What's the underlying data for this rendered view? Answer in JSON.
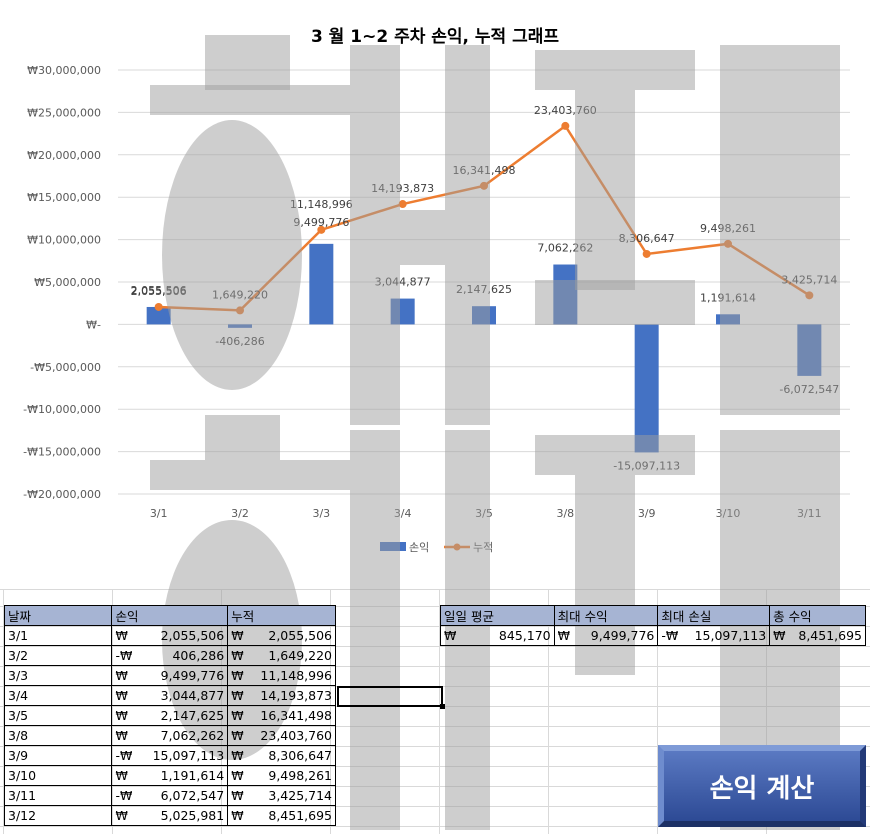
{
  "chart_data": {
    "type": "bar",
    "title": "3 월 1~2 주차 손익, 누적 그래프",
    "categories": [
      "3/1",
      "3/2",
      "3/3",
      "3/4",
      "3/5",
      "3/8",
      "3/9",
      "3/10",
      "3/11"
    ],
    "series": [
      {
        "name": "손익",
        "kind": "bar",
        "color": "#4472c4",
        "values": [
          2055506,
          -406286,
          9499776,
          3044877,
          2147625,
          7062262,
          -15097113,
          1191614,
          -6072547
        ],
        "labels": [
          "2,055,506",
          "-406,286",
          "9,499,776",
          "3,044,877",
          "2,147,625",
          "7,062,262",
          "-15,097,113",
          "1,191,614",
          "-6,072,547"
        ]
      },
      {
        "name": "누적",
        "kind": "line",
        "color": "#ed7d31",
        "values": [
          2055506,
          1649220,
          11148996,
          14193873,
          16341498,
          23403760,
          8306647,
          9498261,
          3425714
        ],
        "labels": [
          "2,055,506",
          "1,649,220",
          "11,148,996",
          "14,193,873",
          "16,341,498",
          "23,403,760",
          "8,306,647",
          "9,498,261",
          "3,425,714"
        ]
      }
    ],
    "ylim": [
      -20000000,
      30000000
    ],
    "yticks": [
      30000000,
      25000000,
      20000000,
      15000000,
      10000000,
      5000000,
      0,
      -5000000,
      -10000000,
      -15000000,
      -20000000
    ],
    "ytick_labels": [
      "₩30,000,000",
      "₩25,000,000",
      "₩20,000,000",
      "₩15,000,000",
      "₩10,000,000",
      "₩5,000,000",
      "₩-",
      "-₩5,000,000",
      "-₩10,000,000",
      "-₩15,000,000",
      "-₩20,000,000"
    ],
    "grid": true,
    "legend": "bottom"
  },
  "watermark": {
    "text": "해지"
  },
  "daily_table": {
    "headers": [
      "날짜",
      "손익",
      "누적"
    ],
    "currency": "₩",
    "neg_currency": "-₩",
    "rows": [
      {
        "date": "3/1",
        "pl": "2,055,506",
        "pl_neg": false,
        "cum": "2,055,506"
      },
      {
        "date": "3/2",
        "pl": "406,286",
        "pl_neg": true,
        "cum": "1,649,220"
      },
      {
        "date": "3/3",
        "pl": "9,499,776",
        "pl_neg": false,
        "cum": "11,148,996"
      },
      {
        "date": "3/4",
        "pl": "3,044,877",
        "pl_neg": false,
        "cum": "14,193,873"
      },
      {
        "date": "3/5",
        "pl": "2,147,625",
        "pl_neg": false,
        "cum": "16,341,498"
      },
      {
        "date": "3/8",
        "pl": "7,062,262",
        "pl_neg": false,
        "cum": "23,403,760"
      },
      {
        "date": "3/9",
        "pl": "15,097,113",
        "pl_neg": true,
        "cum": "8,306,647"
      },
      {
        "date": "3/10",
        "pl": "1,191,614",
        "pl_neg": false,
        "cum": "9,498,261"
      },
      {
        "date": "3/11",
        "pl": "6,072,547",
        "pl_neg": true,
        "cum": "3,425,714"
      },
      {
        "date": "3/12",
        "pl": "5,025,981",
        "pl_neg": false,
        "cum": "8,451,695"
      }
    ]
  },
  "summary": {
    "headers": [
      "일일 평균",
      "최대 수익",
      "최대 손실",
      "총 수익"
    ],
    "values": [
      {
        "cur": "₩",
        "num": "845,170"
      },
      {
        "cur": "₩",
        "num": "9,499,776"
      },
      {
        "cur": "-₩",
        "num": "15,097,113"
      },
      {
        "cur": "₩",
        "num": "8,451,695"
      }
    ]
  },
  "button": {
    "label": "손익 계산"
  }
}
